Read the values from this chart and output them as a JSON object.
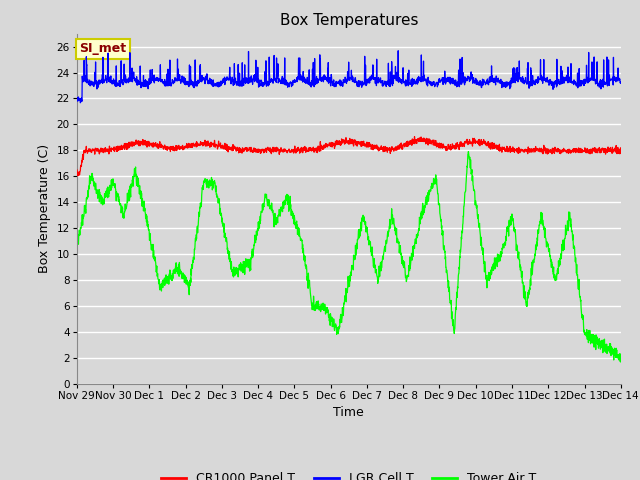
{
  "title": "Box Temperatures",
  "xlabel": "Time",
  "ylabel": "Box Temperature (C)",
  "ylim": [
    0,
    27
  ],
  "yticks": [
    0,
    2,
    4,
    6,
    8,
    10,
    12,
    14,
    16,
    18,
    20,
    22,
    24,
    26
  ],
  "fig_bg_color": "#d8d8d8",
  "plot_bg_color": "#d8d8d8",
  "grid_color": "#ffffff",
  "legend_items": [
    {
      "label": "CR1000 Panel T",
      "color": "red"
    },
    {
      "label": "LGR Cell T",
      "color": "blue"
    },
    {
      "label": "Tower Air T",
      "color": "lime"
    }
  ],
  "annotation_text": "SI_met",
  "annotation_bg": "#ffffcc",
  "annotation_border": "#cccc00",
  "annotation_text_color": "#8b0000",
  "xtick_labels": [
    "Nov 29",
    "Nov 30",
    "Dec 1",
    "Dec 2",
    "Dec 3",
    "Dec 4",
    "Dec 5",
    "Dec 6",
    "Dec 7",
    "Dec 8",
    "Dec 9",
    "Dec 10",
    "Dec 11",
    "Dec 12",
    "Dec 13",
    "Dec 14"
  ],
  "seed": 42
}
